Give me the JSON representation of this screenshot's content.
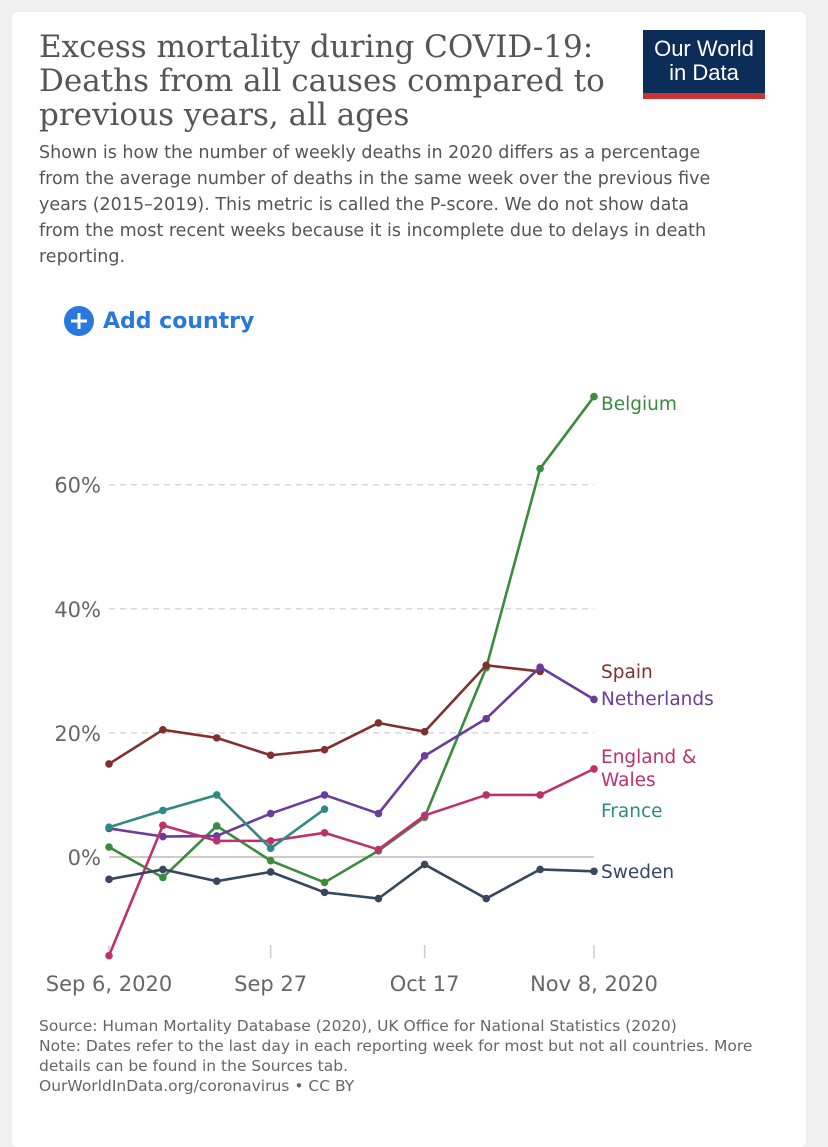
{
  "header": {
    "title": "Excess mortality during COVID-19: Deaths from all causes compared to previous years, all ages",
    "subtitle": "Shown is how the number of weekly deaths in 2020 differs as a percentage from the average number of deaths in the same week over the previous five years (2015–2019). This metric is called the P-score. We do not show data from the most recent weeks because it is incomplete due to delays in death reporting.",
    "logo_line1": "Our World",
    "logo_line2": "in Data"
  },
  "controls": {
    "add_country_label": "Add country"
  },
  "chart_data": {
    "type": "line",
    "x": [
      "2020-09-06",
      "2020-09-13",
      "2020-09-20",
      "2020-09-27",
      "2020-10-04",
      "2020-10-11",
      "2020-10-18",
      "2020-10-25",
      "2020-11-01",
      "2020-11-08"
    ],
    "x_tick_labels": [
      {
        "x": "2020-09-06",
        "label": "Sep 6, 2020"
      },
      {
        "x": "2020-09-27",
        "label": "Sep 27"
      },
      {
        "x": "2020-10-17",
        "label": "Oct 17"
      },
      {
        "x": "2020-11-08",
        "label": "Nov 8, 2020"
      }
    ],
    "y_ticks": [
      {
        "value": 0,
        "label": "0%"
      },
      {
        "value": 20,
        "label": "20%"
      },
      {
        "value": 40,
        "label": "40%"
      },
      {
        "value": 60,
        "label": "60%"
      }
    ],
    "ylim": [
      -16,
      75
    ],
    "grid": "horizontal dashed",
    "legend": "right, labels at line ends",
    "series": [
      {
        "name": "Belgium",
        "color": "#3b8a3e",
        "points": [
          [
            "2020-09-06",
            1.6
          ],
          [
            "2020-09-13",
            -3.3
          ],
          [
            "2020-09-20",
            5.0
          ],
          [
            "2020-09-27",
            -0.6
          ],
          [
            "2020-10-04",
            -4.1
          ],
          [
            "2020-10-11",
            1.0
          ],
          [
            "2020-10-17",
            6.4
          ],
          [
            "2020-10-25",
            30.5
          ],
          [
            "2020-11-01",
            62.6
          ],
          [
            "2020-11-08",
            74.2
          ]
        ]
      },
      {
        "name": "Spain",
        "color": "#80302e",
        "points": [
          [
            "2020-09-06",
            15.0
          ],
          [
            "2020-09-13",
            20.5
          ],
          [
            "2020-09-20",
            19.2
          ],
          [
            "2020-09-27",
            16.4
          ],
          [
            "2020-10-04",
            17.3
          ],
          [
            "2020-10-11",
            21.6
          ],
          [
            "2020-10-17",
            20.2
          ],
          [
            "2020-10-25",
            30.9
          ],
          [
            "2020-11-01",
            29.9
          ]
        ]
      },
      {
        "name": "Netherlands",
        "color": "#6a3d9a",
        "points": [
          [
            "2020-09-06",
            4.6
          ],
          [
            "2020-09-13",
            3.3
          ],
          [
            "2020-09-20",
            3.4
          ],
          [
            "2020-09-27",
            7.0
          ],
          [
            "2020-10-04",
            10.0
          ],
          [
            "2020-10-11",
            7.0
          ],
          [
            "2020-10-17",
            16.3
          ],
          [
            "2020-10-25",
            22.3
          ],
          [
            "2020-11-01",
            30.6
          ],
          [
            "2020-11-08",
            25.4
          ]
        ]
      },
      {
        "name": "England & Wales",
        "color": "#c0306d",
        "points": [
          [
            "2020-09-06",
            -15.9
          ],
          [
            "2020-09-13",
            5.1
          ],
          [
            "2020-09-20",
            2.6
          ],
          [
            "2020-09-27",
            2.6
          ],
          [
            "2020-10-04",
            3.9
          ],
          [
            "2020-10-11",
            1.2
          ],
          [
            "2020-10-17",
            6.7
          ],
          [
            "2020-10-25",
            10.0
          ],
          [
            "2020-11-01",
            10.0
          ],
          [
            "2020-11-08",
            14.2
          ]
        ]
      },
      {
        "name": "France",
        "color": "#2f8a83",
        "points": [
          [
            "2020-09-06",
            4.8
          ],
          [
            "2020-09-13",
            7.5
          ],
          [
            "2020-09-20",
            10.0
          ],
          [
            "2020-09-27",
            1.4
          ],
          [
            "2020-10-04",
            7.7
          ]
        ]
      },
      {
        "name": "Sweden",
        "color": "#37475e",
        "points": [
          [
            "2020-09-06",
            -3.6
          ],
          [
            "2020-09-13",
            -2.0
          ],
          [
            "2020-09-20",
            -3.9
          ],
          [
            "2020-09-27",
            -2.4
          ],
          [
            "2020-10-04",
            -5.7
          ],
          [
            "2020-10-11",
            -6.7
          ],
          [
            "2020-10-17",
            -1.2
          ],
          [
            "2020-10-25",
            -6.7
          ],
          [
            "2020-11-01",
            -2.0
          ],
          [
            "2020-11-08",
            -2.3
          ]
        ]
      }
    ]
  },
  "footer": {
    "source": "Source: Human Mortality Database (2020), UK Office for National Statistics (2020)",
    "note": "Note: Dates refer to the last day in each reporting week for most but not all countries. More details can be found in the Sources tab.",
    "url": "OurWorldInData.org/coronavirus",
    "separator": "•",
    "license": "CC BY"
  }
}
